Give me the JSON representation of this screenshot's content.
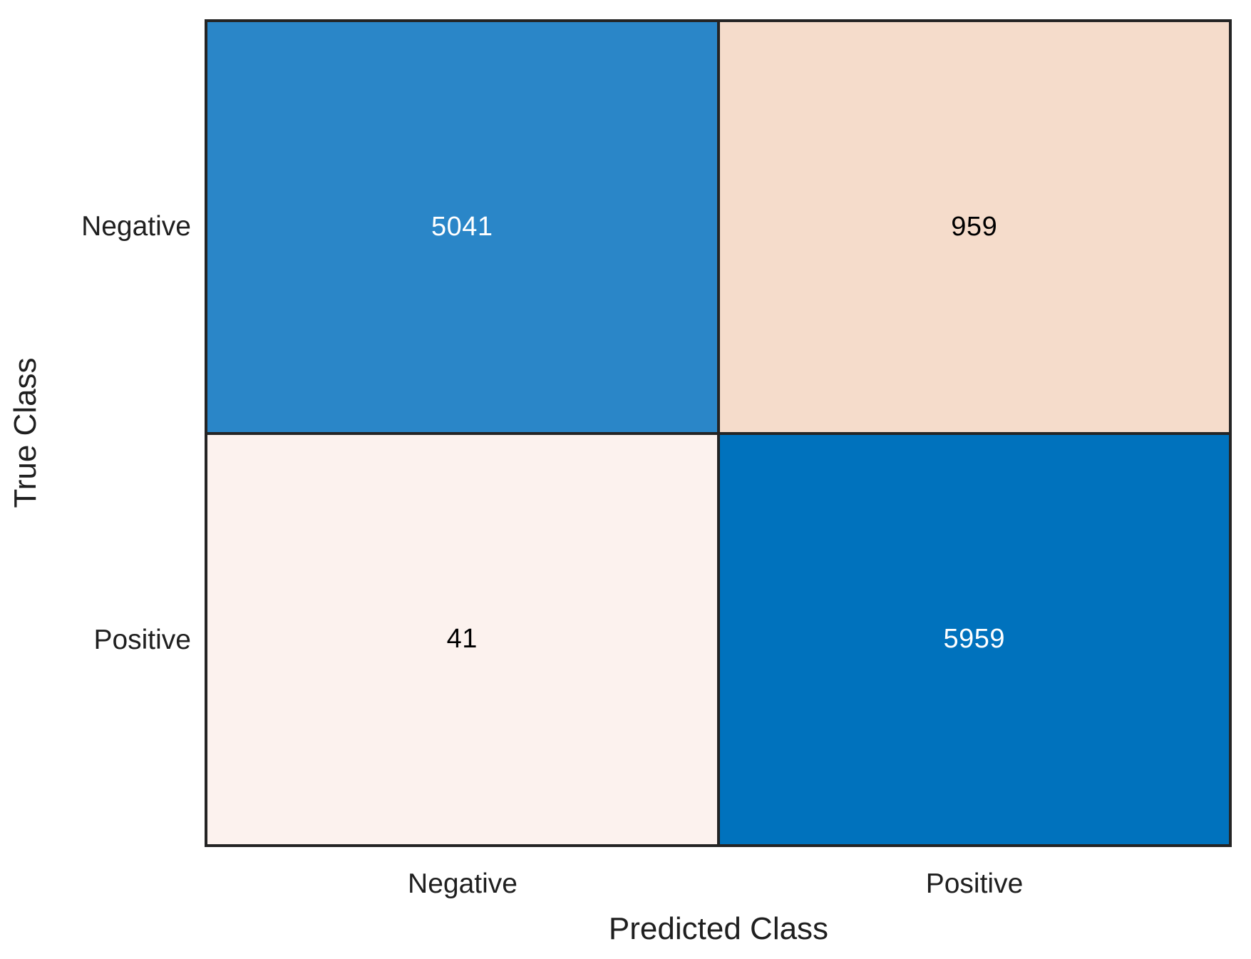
{
  "chart_data": {
    "type": "heatmap",
    "subtype": "confusion-matrix",
    "title": "",
    "xlabel": "Predicted Class",
    "ylabel": "True Class",
    "x_categories": [
      "Negative",
      "Positive"
    ],
    "y_categories": [
      "Negative",
      "Positive"
    ],
    "values": [
      [
        5041,
        959
      ],
      [
        41,
        5959
      ]
    ],
    "cell_bg": [
      [
        "#2A86C8",
        "#F5DCCB"
      ],
      [
        "#FCF2EE",
        "#0072BD"
      ]
    ],
    "cell_fg": [
      [
        "#FFFFFF",
        "#000000"
      ],
      [
        "#000000",
        "#FFFFFF"
      ]
    ],
    "grid_line_color": "#242424",
    "axis_text_color": "#1F1F1F",
    "background_color": "#FFFFFF",
    "legend": "none",
    "grid": "cell-borders"
  }
}
